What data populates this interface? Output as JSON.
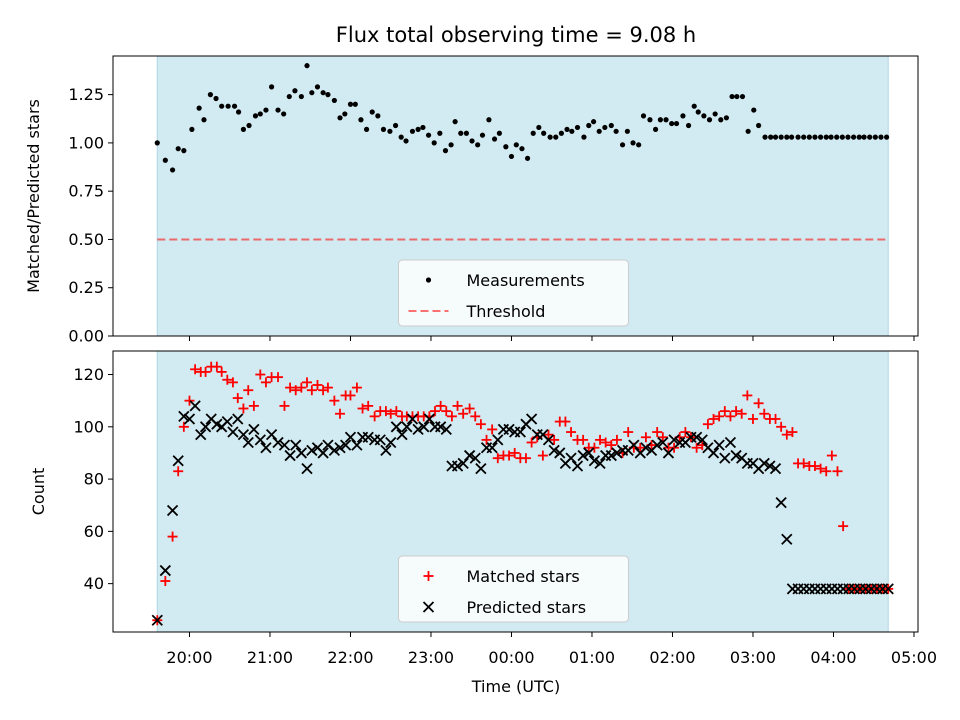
{
  "title": "Flux total observing time = 9.08 h",
  "colors": {
    "shade": "#add8e6",
    "measurement": "#000000",
    "threshold": "#ff0000",
    "matched": "#ff0000",
    "predicted": "#000000"
  },
  "x_axis": {
    "label": "Time (UTC)",
    "range_hours": [
      19.05,
      29.05
    ],
    "ticks": [
      {
        "h": 20,
        "label": "20:00"
      },
      {
        "h": 21,
        "label": "21:00"
      },
      {
        "h": 22,
        "label": "22:00"
      },
      {
        "h": 23,
        "label": "23:00"
      },
      {
        "h": 24,
        "label": "00:00"
      },
      {
        "h": 25,
        "label": "01:00"
      },
      {
        "h": 26,
        "label": "02:00"
      },
      {
        "h": 27,
        "label": "03:00"
      },
      {
        "h": 28,
        "label": "04:00"
      },
      {
        "h": 29,
        "label": "05:00"
      }
    ],
    "observing_window_hours": [
      19.6,
      28.68
    ]
  },
  "chart_data": [
    {
      "type": "scatter",
      "ylabel": "Matched/Predicted stars",
      "ylim": [
        0,
        1.45
      ],
      "yticks": [
        0,
        0.25,
        0.5,
        0.75,
        1.0,
        1.25
      ],
      "ytick_labels": [
        "0.00",
        "0.25",
        "0.50",
        "0.75",
        "1.00",
        "1.25"
      ],
      "legend": {
        "placement": "lower center",
        "entries": [
          "Measurements",
          "Threshold"
        ]
      },
      "threshold": 0.5,
      "series": [
        {
          "name": "Measurements",
          "x": [
            19.6,
            19.7,
            19.79,
            19.86,
            19.93,
            20.03,
            20.12,
            20.18,
            20.26,
            20.33,
            20.4,
            20.48,
            20.56,
            20.61,
            20.67,
            20.74,
            20.82,
            20.88,
            20.95,
            21.02,
            21.1,
            21.17,
            21.24,
            21.31,
            21.39,
            21.46,
            21.52,
            21.59,
            21.66,
            21.72,
            21.8,
            21.87,
            21.93,
            22.0,
            22.06,
            22.13,
            22.2,
            22.27,
            22.34,
            22.41,
            22.49,
            22.56,
            22.63,
            22.69,
            22.77,
            22.84,
            22.9,
            22.97,
            23.04,
            23.11,
            23.18,
            23.25,
            23.3,
            23.37,
            23.44,
            23.51,
            23.58,
            23.64,
            23.72,
            23.79,
            23.85,
            23.93,
            24.0,
            24.06,
            24.13,
            24.2,
            24.27,
            24.34,
            24.4,
            24.48,
            24.55,
            24.62,
            24.69,
            24.75,
            24.82,
            24.9,
            24.96,
            25.02,
            25.09,
            25.16,
            25.24,
            25.3,
            25.38,
            25.44,
            25.51,
            25.58,
            25.64,
            25.72,
            25.79,
            25.85,
            25.92,
            25.99,
            26.05,
            26.13,
            26.2,
            26.27,
            26.32,
            26.39,
            26.46,
            26.53,
            26.6,
            26.67,
            26.74,
            26.8,
            26.87,
            26.94,
            27.01,
            27.07,
            27.15,
            27.22,
            27.28,
            27.35,
            27.42,
            27.48,
            27.56,
            27.63,
            27.7,
            27.77,
            27.84,
            27.91,
            27.97,
            28.04,
            28.11,
            28.18,
            28.25,
            28.32,
            28.38,
            28.45,
            28.52,
            28.59,
            28.66
          ],
          "y": [
            1.0,
            0.91,
            0.86,
            0.97,
            0.96,
            1.07,
            1.18,
            1.12,
            1.25,
            1.23,
            1.19,
            1.19,
            1.19,
            1.16,
            1.07,
            1.09,
            1.14,
            1.15,
            1.17,
            1.29,
            1.17,
            1.15,
            1.24,
            1.27,
            1.24,
            1.4,
            1.26,
            1.29,
            1.26,
            1.25,
            1.22,
            1.13,
            1.15,
            1.2,
            1.2,
            1.12,
            1.07,
            1.16,
            1.14,
            1.07,
            1.06,
            1.09,
            1.03,
            1.01,
            1.06,
            1.07,
            1.08,
            1.04,
            1.0,
            1.05,
            0.96,
            0.99,
            1.11,
            1.05,
            1.05,
            1.01,
            0.99,
            1.04,
            1.12,
            1.02,
            1.05,
            0.98,
            0.93,
            0.99,
            0.97,
            0.92,
            1.05,
            1.08,
            1.05,
            1.03,
            1.03,
            1.05,
            1.07,
            1.06,
            1.08,
            1.03,
            1.09,
            1.11,
            1.06,
            1.08,
            1.09,
            1.06,
            0.99,
            1.06,
            1.0,
            0.99,
            1.14,
            1.12,
            1.07,
            1.12,
            1.12,
            1.1,
            1.1,
            1.14,
            1.09,
            1.19,
            1.16,
            1.14,
            1.12,
            1.15,
            1.12,
            1.13,
            1.24,
            1.24,
            1.24,
            1.06,
            1.17,
            1.09,
            1.03,
            1.03,
            1.03,
            1.03,
            1.03,
            1.03,
            1.03,
            1.03,
            1.03,
            1.03,
            1.03,
            1.03,
            1.03,
            1.03,
            1.03,
            1.03,
            1.03,
            1.03,
            1.03,
            1.03,
            1.03,
            1.03,
            1.03
          ]
        }
      ]
    },
    {
      "type": "scatter",
      "ylabel": "Count",
      "xlabel": "Time (UTC)",
      "ylim": [
        21.5,
        129
      ],
      "yticks": [
        40,
        60,
        80,
        100,
        120
      ],
      "ytick_labels": [
        "40",
        "60",
        "80",
        "100",
        "120"
      ],
      "legend": {
        "placement": "lower center",
        "entries": [
          "Matched stars",
          "Predicted stars"
        ]
      },
      "series": [
        {
          "name": "Matched stars",
          "marker": "+",
          "x": [
            19.6,
            19.7,
            19.79,
            19.86,
            19.93,
            20.0,
            20.07,
            20.14,
            20.2,
            20.27,
            20.34,
            20.4,
            20.47,
            20.54,
            20.6,
            20.67,
            20.73,
            20.8,
            20.88,
            20.95,
            21.02,
            21.1,
            21.18,
            21.25,
            21.32,
            21.39,
            21.46,
            21.52,
            21.59,
            21.66,
            21.72,
            21.8,
            21.87,
            21.94,
            22.0,
            22.08,
            22.15,
            22.22,
            22.3,
            22.37,
            22.44,
            22.5,
            22.57,
            22.64,
            22.7,
            22.77,
            22.84,
            22.91,
            22.98,
            23.05,
            23.12,
            23.19,
            23.26,
            23.33,
            23.4,
            23.48,
            23.55,
            23.62,
            23.69,
            23.76,
            23.83,
            23.9,
            23.97,
            24.04,
            24.11,
            24.18,
            24.25,
            24.32,
            24.39,
            24.46,
            24.53,
            24.6,
            24.67,
            24.74,
            24.82,
            24.89,
            24.96,
            25.03,
            25.1,
            25.17,
            25.24,
            25.31,
            25.38,
            25.45,
            25.52,
            25.6,
            25.67,
            25.74,
            25.81,
            25.88,
            25.95,
            26.02,
            26.09,
            26.16,
            26.23,
            26.3,
            26.37,
            26.44,
            26.51,
            26.58,
            26.65,
            26.72,
            26.79,
            26.86,
            26.93,
            27.0,
            27.07,
            27.14,
            27.21,
            27.28,
            27.35,
            27.42,
            27.49,
            27.56,
            27.63,
            27.7,
            27.77,
            27.84,
            27.91,
            27.98,
            28.05,
            28.12,
            28.19,
            28.26,
            28.33,
            28.4,
            28.47,
            28.54,
            28.61,
            28.68
          ],
          "y": [
            26,
            41,
            58,
            83,
            100,
            110,
            122,
            121,
            121,
            123,
            123,
            121,
            118,
            117,
            111,
            107,
            114,
            108,
            120,
            117,
            119,
            119,
            108,
            115,
            114,
            115,
            117,
            114,
            116,
            114,
            115,
            110,
            105,
            112,
            112,
            115,
            107,
            108,
            104,
            106,
            106,
            105,
            106,
            104,
            104,
            104,
            104,
            104,
            104,
            106,
            108,
            106,
            104,
            108,
            105,
            107,
            104,
            101,
            95,
            99,
            88,
            89,
            89,
            90,
            88,
            88,
            94,
            96,
            89,
            97,
            95,
            102,
            102,
            98,
            95,
            95,
            92,
            92,
            95,
            94,
            93,
            95,
            90,
            98,
            92,
            92,
            96,
            93,
            98,
            96,
            92,
            92,
            96,
            98,
            96,
            92,
            93,
            101,
            103,
            104,
            106,
            104,
            106,
            105,
            112,
            103,
            109,
            105,
            103,
            103,
            100,
            97,
            98,
            86,
            86,
            85,
            85,
            84,
            83,
            89,
            83,
            62,
            38,
            38,
            38,
            38,
            38,
            38,
            38,
            38
          ]
        },
        {
          "name": "Predicted stars",
          "marker": "x",
          "x": [
            19.6,
            19.7,
            19.79,
            19.86,
            19.93,
            20.0,
            20.07,
            20.14,
            20.2,
            20.27,
            20.34,
            20.4,
            20.47,
            20.54,
            20.6,
            20.67,
            20.73,
            20.8,
            20.88,
            20.95,
            21.02,
            21.1,
            21.18,
            21.25,
            21.32,
            21.39,
            21.46,
            21.52,
            21.59,
            21.66,
            21.72,
            21.8,
            21.87,
            21.94,
            22.0,
            22.08,
            22.15,
            22.22,
            22.3,
            22.37,
            22.44,
            22.5,
            22.57,
            22.64,
            22.7,
            22.77,
            22.84,
            22.91,
            22.98,
            23.05,
            23.12,
            23.19,
            23.26,
            23.33,
            23.4,
            23.48,
            23.55,
            23.62,
            23.69,
            23.76,
            23.83,
            23.9,
            23.97,
            24.04,
            24.11,
            24.18,
            24.25,
            24.32,
            24.39,
            24.46,
            24.53,
            24.6,
            24.67,
            24.74,
            24.82,
            24.89,
            24.96,
            25.03,
            25.1,
            25.17,
            25.24,
            25.31,
            25.38,
            25.45,
            25.52,
            25.6,
            25.67,
            25.74,
            25.81,
            25.88,
            25.95,
            26.02,
            26.09,
            26.16,
            26.23,
            26.3,
            26.37,
            26.44,
            26.51,
            26.58,
            26.65,
            26.72,
            26.79,
            26.86,
            26.93,
            27.0,
            27.07,
            27.14,
            27.21,
            27.28,
            27.35,
            27.42,
            27.49,
            27.56,
            27.63,
            27.7,
            27.77,
            27.84,
            27.91,
            27.98,
            28.05,
            28.12,
            28.19,
            28.26,
            28.33,
            28.4,
            28.47,
            28.54,
            28.61,
            28.68
          ],
          "y": [
            26,
            45,
            68,
            87,
            104,
            103,
            108,
            97,
            100,
            103,
            101,
            100,
            102,
            98,
            103,
            97,
            94,
            99,
            95,
            92,
            97,
            94,
            93,
            89,
            93,
            90,
            84,
            91,
            92,
            90,
            93,
            91,
            92,
            93,
            96,
            93,
            96,
            96,
            95,
            95,
            91,
            94,
            100,
            97,
            100,
            103,
            99,
            100,
            103,
            100,
            100,
            99,
            85,
            85,
            86,
            89,
            88,
            84,
            92,
            92,
            95,
            99,
            99,
            98,
            98,
            101,
            103,
            97,
            97,
            95,
            91,
            90,
            86,
            88,
            85,
            89,
            90,
            87,
            86,
            89,
            89,
            90,
            91,
            91,
            93,
            90,
            92,
            91,
            93,
            94,
            90,
            95,
            94,
            94,
            96,
            96,
            95,
            92,
            90,
            93,
            88,
            94,
            89,
            88,
            86,
            86,
            84,
            86,
            85,
            84,
            71,
            57,
            38,
            38,
            38,
            38,
            38,
            38,
            38,
            38,
            38,
            38,
            38,
            38,
            38,
            38,
            38,
            38,
            38,
            38
          ]
        }
      ]
    }
  ]
}
